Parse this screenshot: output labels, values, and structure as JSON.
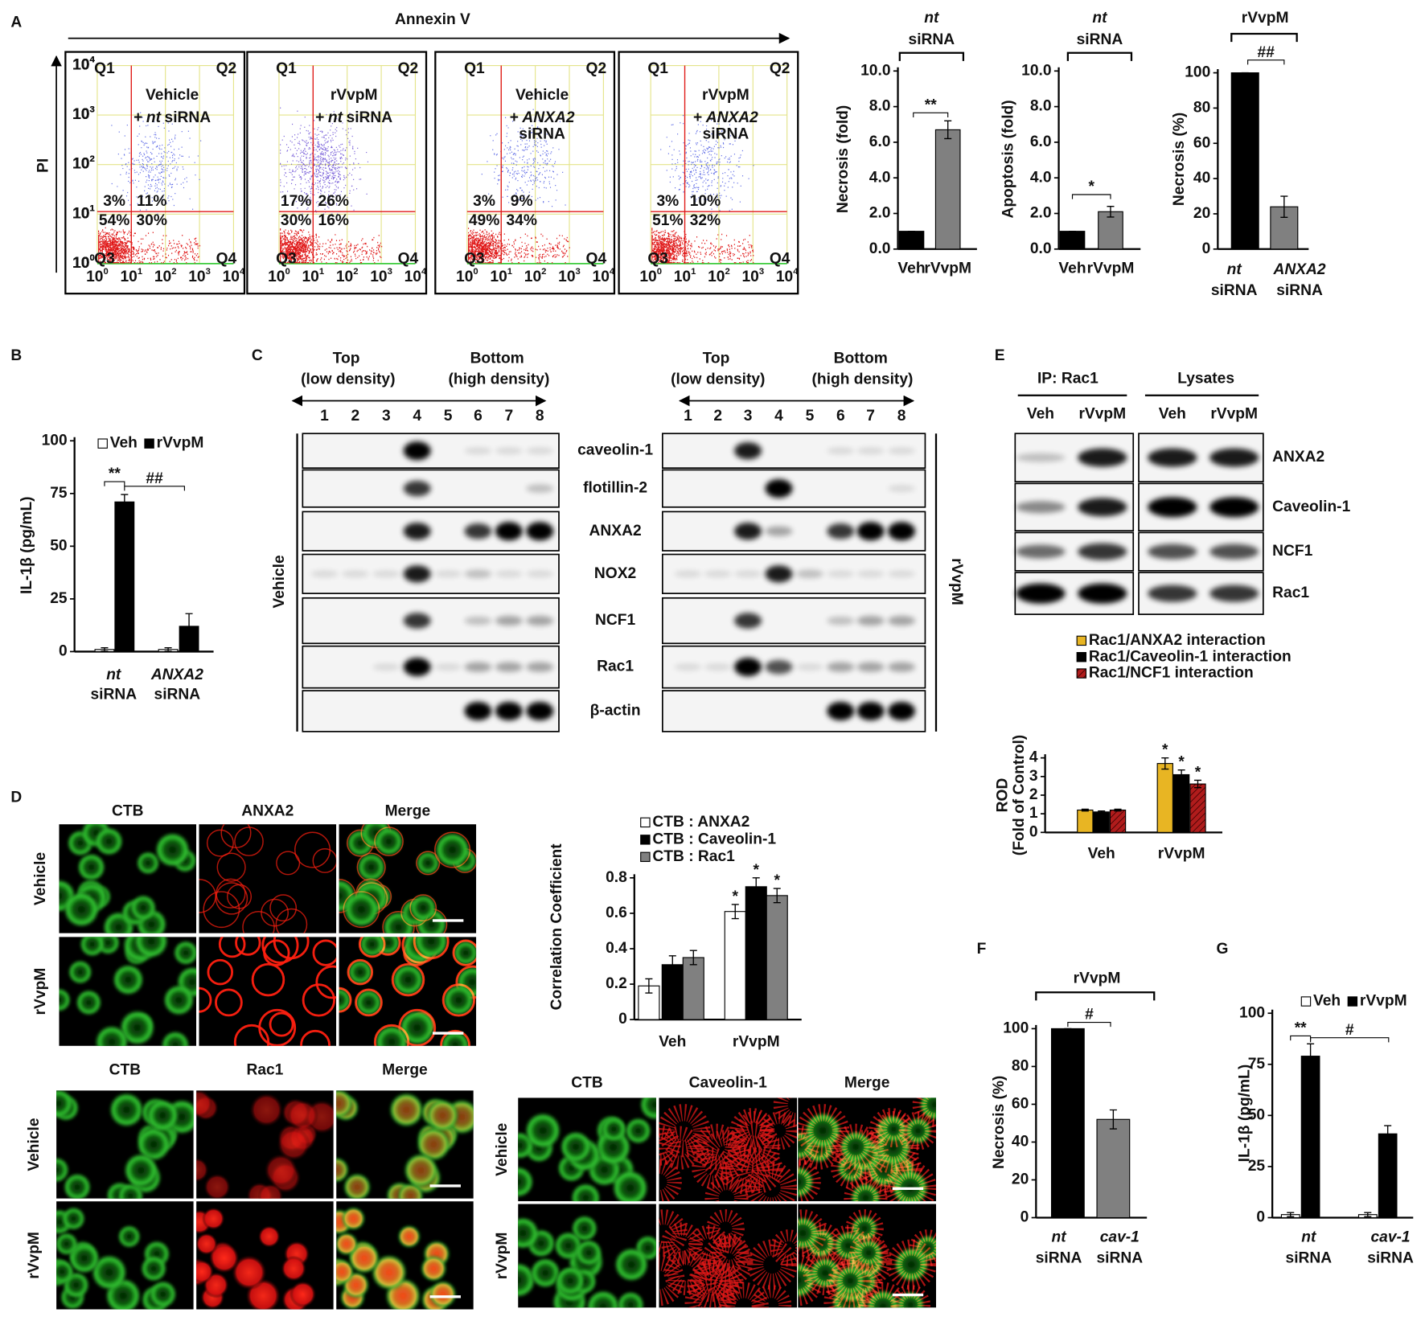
{
  "panel_labels": [
    "A",
    "B",
    "C",
    "D",
    "E",
    "F",
    "G"
  ],
  "flow": {
    "x_label": "Annexin V",
    "y_label": "PI",
    "tick_base": "10",
    "tick_exponents": [
      "0",
      "1",
      "2",
      "3",
      "4"
    ],
    "quadrants": [
      "Q1",
      "Q2",
      "Q3",
      "Q4"
    ],
    "plots": [
      {
        "lines": [
          [
            "Vehicle"
          ],
          [
            "+",
            "nt",
            "siRNA"
          ]
        ],
        "percents": [
          "3%",
          "11%",
          "54%",
          "30%"
        ]
      },
      {
        "lines": [
          [
            "rVvpM"
          ],
          [
            "+",
            "nt",
            "siRNA"
          ]
        ],
        "percents": [
          "17%",
          "26%",
          "30%",
          "16%"
        ]
      },
      {
        "lines": [
          [
            "Vehicle"
          ],
          [
            "+",
            "ANXA2"
          ],
          [
            "siRNA"
          ]
        ],
        "percents": [
          "3%",
          "9%",
          "49%",
          "34%"
        ]
      },
      {
        "lines": [
          [
            "rVvpM"
          ],
          [
            "+",
            "ANXA2"
          ],
          [
            "siRNA"
          ]
        ],
        "percents": [
          "3%",
          "10%",
          "51%",
          "32%"
        ]
      }
    ]
  },
  "chart_data": [
    {
      "type": "bar",
      "group_label": [
        "nt",
        "siRNA"
      ],
      "y_label": [
        "Necrosis (fold)"
      ],
      "categories": [
        [
          "Veh"
        ],
        [
          "rVvpM"
        ]
      ],
      "values": [
        1,
        6.7
      ],
      "errors": [
        0,
        0.5
      ],
      "colors": [
        "#000000",
        "#808080"
      ],
      "ylim": [
        0,
        10
      ],
      "yticks": [
        {
          "value": 0,
          "label": "0.0"
        },
        {
          "value": 2,
          "label": "2.0"
        },
        {
          "value": 4,
          "label": "4.0"
        },
        {
          "value": 6,
          "label": "6.0"
        },
        {
          "value": 8,
          "label": "8.0"
        },
        {
          "value": 10,
          "label": "10.0"
        }
      ],
      "annotations": [
        "**"
      ]
    },
    {
      "type": "bar",
      "group_label": [
        "nt",
        "siRNA"
      ],
      "y_label": [
        "Apoptosis (fold)"
      ],
      "categories": [
        [
          "Veh"
        ],
        [
          "rVvpM"
        ]
      ],
      "values": [
        1,
        2.1
      ],
      "errors": [
        0,
        0.3
      ],
      "colors": [
        "#000000",
        "#808080"
      ],
      "ylim": [
        0,
        10
      ],
      "yticks": [
        {
          "value": 0,
          "label": "0.0"
        },
        {
          "value": 2,
          "label": "2.0"
        },
        {
          "value": 4,
          "label": "4.0"
        },
        {
          "value": 6,
          "label": "6.0"
        },
        {
          "value": 8,
          "label": "8.0"
        },
        {
          "value": 10,
          "label": "10.0"
        }
      ],
      "annotations": [
        "*"
      ]
    },
    {
      "type": "bar",
      "group_label": [
        "rVvpM"
      ],
      "y_label": [
        "Necrosis (%)"
      ],
      "categories": [
        [
          "nt",
          "siRNA"
        ],
        [
          "ANXA2",
          "siRNA"
        ]
      ],
      "values": [
        100,
        24
      ],
      "errors": [
        0,
        6
      ],
      "colors": [
        "#000000",
        "#808080"
      ],
      "ylim": [
        0,
        100
      ],
      "yticks": [
        0,
        20,
        40,
        60,
        80,
        100
      ],
      "annotations": [
        "##"
      ]
    },
    {
      "type": "bar",
      "y_label": [
        "IL-1β (pg/mL)"
      ],
      "categories": [
        [
          "nt",
          "siRNA"
        ],
        [
          "ANXA2",
          "siRNA"
        ]
      ],
      "series": [
        {
          "name": "Veh",
          "color": "#ffffff",
          "values": [
            1,
            1
          ],
          "errors": [
            0.8,
            0.8
          ]
        },
        {
          "name": "rVvpM",
          "color": "#000000",
          "values": [
            71,
            12
          ],
          "errors": [
            3.5,
            6
          ]
        }
      ],
      "legend": "top",
      "ylim": [
        0,
        100
      ],
      "yticks": [
        0,
        25,
        50,
        75,
        100
      ],
      "annotations": [
        "**",
        "##"
      ]
    },
    {
      "type": "bar",
      "y_label": [
        "Correlation Coefficient"
      ],
      "categories": [
        [
          "Veh"
        ],
        [
          "rVvpM"
        ]
      ],
      "series": [
        {
          "name": "CTB : ANXA2",
          "color": "#ffffff",
          "values": [
            0.19,
            0.61
          ],
          "errors": [
            0.04,
            0.04
          ]
        },
        {
          "name": "CTB : Caveolin-1",
          "color": "#000000",
          "values": [
            0.31,
            0.75
          ],
          "errors": [
            0.05,
            0.05
          ]
        },
        {
          "name": "CTB : Rac1",
          "color": "#808080",
          "values": [
            0.35,
            0.7
          ],
          "errors": [
            0.04,
            0.04
          ]
        }
      ],
      "legend": "top",
      "ylim": [
        0,
        0.8
      ],
      "yticks": [
        0,
        0.2,
        0.4,
        0.6,
        0.8
      ],
      "annotations": [
        "*",
        "*",
        "*"
      ]
    },
    {
      "type": "bar",
      "y_label": [
        "ROD",
        "(Fold of Control)"
      ],
      "categories": [
        [
          "Veh"
        ],
        [
          "rVvpM"
        ]
      ],
      "series": [
        {
          "name": "Rac1/ANXA2 interaction",
          "color": "#e8b523",
          "values": [
            1.2,
            3.7
          ],
          "errors": [
            0.05,
            0.3
          ]
        },
        {
          "name": "Rac1/Caveolin-1 interaction",
          "color": "#000000",
          "values": [
            1.1,
            3.1
          ],
          "errors": [
            0.05,
            0.25
          ]
        },
        {
          "name": "Rac1/NCF1 interaction",
          "color": "#b01c1c",
          "hatched": true,
          "values": [
            1.2,
            2.6
          ],
          "errors": [
            0.05,
            0.2
          ]
        }
      ],
      "legend": "top",
      "ylim": [
        0,
        4
      ],
      "yticks": [
        0,
        1,
        2,
        3,
        4
      ],
      "annotations": [
        "*",
        "*",
        "*"
      ]
    },
    {
      "type": "bar",
      "group_label": [
        "rVvpM"
      ],
      "y_label": [
        "Necrosis (%)"
      ],
      "categories": [
        [
          "nt",
          "siRNA"
        ],
        [
          "cav-1",
          "siRNA"
        ]
      ],
      "values": [
        100,
        52
      ],
      "errors": [
        0,
        5
      ],
      "colors": [
        "#000000",
        "#808080"
      ],
      "ylim": [
        0,
        100
      ],
      "yticks": [
        0,
        20,
        40,
        60,
        80,
        100
      ],
      "annotations": [
        "#"
      ]
    },
    {
      "type": "bar",
      "y_label": [
        "IL-1β (pg/mL)"
      ],
      "categories": [
        [
          "nt",
          "siRNA"
        ],
        [
          "cav-1",
          "siRNA"
        ]
      ],
      "series": [
        {
          "name": "Veh",
          "color": "#ffffff",
          "values": [
            1.5,
            1.5
          ],
          "errors": [
            1,
            1
          ]
        },
        {
          "name": "rVvpM",
          "color": "#000000",
          "values": [
            79,
            41
          ],
          "errors": [
            6,
            4
          ]
        }
      ],
      "legend": "top",
      "ylim": [
        0,
        100
      ],
      "yticks": [
        0,
        25,
        50,
        75,
        100
      ],
      "annotations": [
        "**",
        "#"
      ]
    }
  ],
  "fractionation": {
    "top": "Top",
    "top_sub": "(low density)",
    "bottom": "Bottom",
    "bottom_sub": "(high density)",
    "lanes": [
      1,
      2,
      3,
      4,
      5,
      6,
      7,
      8
    ],
    "proteins": [
      "caveolin-1",
      "flotillin-2",
      "ANXA2",
      "NOX2",
      "NCF1",
      "Rac1",
      "β-actin"
    ],
    "conditions": [
      "Vehicle",
      "rVvpM"
    ]
  },
  "coip": {
    "groups": [
      "IP: Rac1",
      "Lysates"
    ],
    "lanes": [
      "Veh",
      "rVvpM"
    ],
    "proteins": [
      "ANXA2",
      "Caveolin-1",
      "NCF1",
      "Rac1"
    ]
  },
  "microscopy": [
    {
      "columns": [
        "CTB",
        "ANXA2",
        "Merge"
      ],
      "rows": [
        "Vehicle",
        "rVvpM"
      ]
    },
    {
      "columns": [
        "CTB",
        "Rac1",
        "Merge"
      ],
      "rows": [
        "Vehicle",
        "rVvpM"
      ]
    },
    {
      "columns": [
        "CTB",
        "Caveolin-1",
        "Merge"
      ],
      "rows": [
        "Vehicle",
        "rVvpM"
      ]
    }
  ]
}
